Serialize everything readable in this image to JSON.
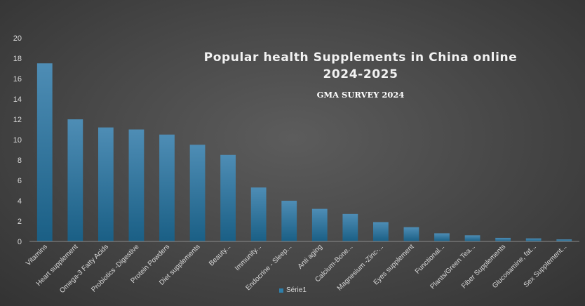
{
  "chart_data": {
    "type": "bar",
    "title_line1": "Popular health Supplements in China online",
    "title_line2": "2024-2025",
    "subtitle": "GMA SURVEY 2024",
    "categories": [
      "Vitamins",
      "Heart supplement",
      "Omega-3 Fatty Acids",
      "Probiotics -Digestive",
      "Protein Powders",
      "Diet supplements",
      "Beauty...",
      "Immunity...",
      "Endocrine - Sleep...",
      "Anti aging",
      "Calcium-Bone...",
      "Magnesium -Zinc-...",
      "Eyes supplement",
      "Functional...",
      "Plants/Green Tea...",
      "Fiber Supplements",
      "Glucosamine, fat...",
      "Sex Supplement..."
    ],
    "series": [
      {
        "name": "Série1",
        "values": [
          17.5,
          12.0,
          11.2,
          11.0,
          10.5,
          9.5,
          8.5,
          5.3,
          4.0,
          3.2,
          2.7,
          1.9,
          1.4,
          0.8,
          0.6,
          0.35,
          0.3,
          0.2
        ]
      }
    ],
    "yticks": [
      "0",
      "2",
      "4",
      "6",
      "8",
      "10",
      "12",
      "14",
      "16",
      "18",
      "20"
    ],
    "ylim": [
      0,
      20
    ],
    "legend_position": "bottom",
    "colors": {
      "bar_top": "#4e8db5",
      "bar_bottom": "#1a5f85",
      "axis_text": "#d9d9d9",
      "axis_line": "#8a8a8a"
    }
  }
}
